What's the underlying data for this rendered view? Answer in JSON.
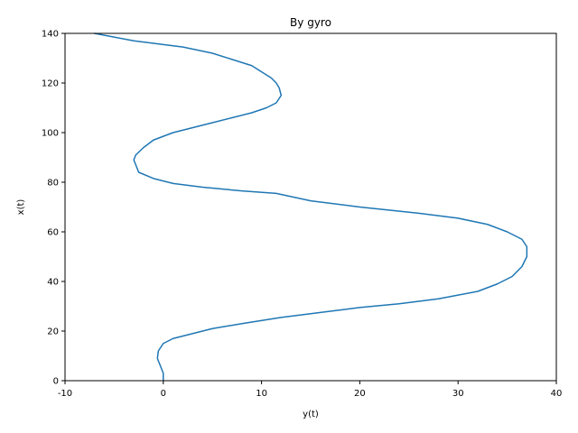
{
  "chart_data": {
    "type": "line",
    "title": "By gyro",
    "xlabel": "y(t)",
    "ylabel": "x(t)",
    "xlim": [
      -10,
      40
    ],
    "ylim": [
      0,
      140
    ],
    "xticks": [
      -10,
      0,
      10,
      20,
      30,
      40
    ],
    "yticks": [
      0,
      20,
      40,
      60,
      80,
      100,
      120,
      140
    ],
    "grid": false,
    "line_color": "#1f77b4",
    "series": [
      {
        "x": [
          0,
          0,
          -0.3,
          -0.6,
          -0.5,
          0,
          1,
          3,
          5,
          8,
          12,
          16,
          20,
          24,
          26,
          28,
          30,
          32,
          34,
          35.5,
          36.5,
          37,
          37,
          36.5,
          35,
          33,
          30,
          26,
          20,
          15,
          11.5,
          8,
          4,
          1,
          -1,
          -2.5,
          -3,
          -2.8,
          -2,
          -1,
          1,
          3,
          5,
          7,
          9,
          10.5,
          11.5,
          12,
          11.8,
          11.5,
          11,
          10,
          9,
          7,
          5,
          2,
          0,
          -3,
          -5,
          -7
        ],
        "y": [
          0,
          3,
          6,
          9,
          12,
          15,
          17,
          19,
          21,
          23,
          25.5,
          27.5,
          29.5,
          31,
          32,
          33,
          34.5,
          36,
          39,
          42,
          46,
          50,
          54,
          57,
          60,
          63,
          65.5,
          67.5,
          70,
          72.5,
          75.5,
          76.5,
          78,
          79.5,
          81.5,
          84,
          89,
          91,
          94,
          97,
          100,
          102,
          104,
          106,
          108,
          110,
          112,
          115,
          118,
          120,
          122,
          124.5,
          127,
          129.5,
          132,
          134.5,
          135.5,
          137,
          138.5,
          140
        ]
      }
    ]
  }
}
